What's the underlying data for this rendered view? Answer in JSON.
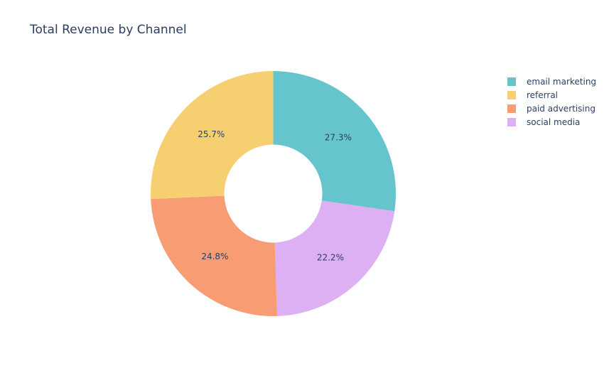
{
  "chart_data": {
    "type": "pie",
    "title": "Total Revenue by Channel",
    "hole": 0.4,
    "sort": "descending",
    "direction": "clockwise",
    "slices": [
      {
        "label": "email marketing",
        "percent": 27.3,
        "text": "27.3%",
        "color": "#66c5cc"
      },
      {
        "label": "social media",
        "percent": 22.2,
        "text": "22.2%",
        "color": "#dcb0f2"
      },
      {
        "label": "paid advertising",
        "percent": 24.8,
        "text": "24.8%",
        "color": "#f89c74"
      },
      {
        "label": "referral",
        "percent": 25.7,
        "text": "25.7%",
        "color": "#f6cf71"
      }
    ],
    "legend": {
      "placement": "top-right",
      "entries": [
        {
          "label": "email marketing",
          "color": "#66c5cc"
        },
        {
          "label": "referral",
          "color": "#f6cf71"
        },
        {
          "label": "paid advertising",
          "color": "#f89c74"
        },
        {
          "label": "social media",
          "color": "#dcb0f2"
        }
      ]
    }
  }
}
